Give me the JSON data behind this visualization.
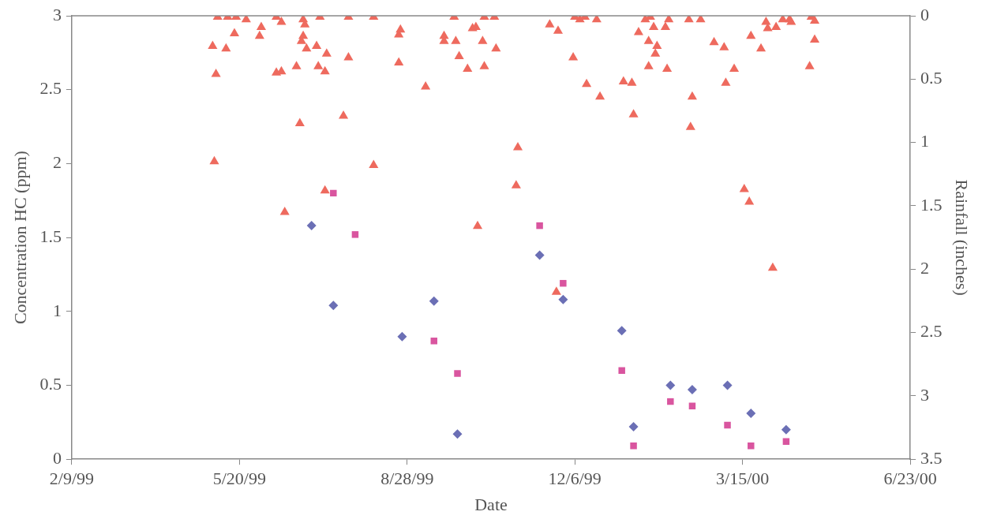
{
  "chart_data": {
    "type": "scatter",
    "xlabel": "Date",
    "ylabel": "Concentration HC (ppm)",
    "y2label": "Rainfall (inches)",
    "grid": false,
    "legend": false,
    "xlim": [
      "1999-02-09",
      "2000-06-23"
    ],
    "xticks": [
      {
        "value": "1999-02-09",
        "label": "2/9/99"
      },
      {
        "value": "1999-05-20",
        "label": "5/20/99"
      },
      {
        "value": "1999-08-28",
        "label": "8/28/99"
      },
      {
        "value": "1999-12-06",
        "label": "12/6/99"
      },
      {
        "value": "2000-03-15",
        "label": "3/15/00"
      },
      {
        "value": "2000-06-23",
        "label": "6/23/00"
      }
    ],
    "ylim": [
      0,
      3
    ],
    "yticks": [
      0,
      0.5,
      1,
      1.5,
      2,
      2.5,
      3
    ],
    "y2lim": [
      3.5,
      0
    ],
    "y2ticks": [
      0,
      0.5,
      1,
      1.5,
      2,
      2.5,
      3,
      3.5
    ],
    "series": [
      {
        "color": "#6b6fb5",
        "marker": "diamond",
        "x": [
          "1999-07-02",
          "1999-07-15",
          "1999-08-25",
          "1999-09-13",
          "1999-09-27",
          "1999-11-15",
          "1999-11-29",
          "2000-01-03",
          "2000-01-10",
          "2000-02-01",
          "2000-02-14",
          "2000-03-06",
          "2000-03-20",
          "2000-04-10"
        ],
        "values": [
          1.58,
          1.04,
          0.83,
          1.07,
          0.17,
          1.38,
          1.08,
          0.87,
          0.22,
          0.5,
          0.47,
          0.5,
          0.31,
          0.2
        ]
      },
      {
        "color": "#d9559f",
        "marker": "square",
        "x": [
          "1999-07-15",
          "1999-07-28",
          "1999-09-13",
          "1999-09-27",
          "1999-11-15",
          "1999-11-29",
          "2000-01-03",
          "2000-01-10",
          "2000-02-01",
          "2000-02-14",
          "2000-03-06",
          "2000-03-20",
          "2000-04-10"
        ],
        "values": [
          1.8,
          1.52,
          0.8,
          0.58,
          1.58,
          1.19,
          0.6,
          0.09,
          0.39,
          0.36,
          0.23,
          0.09,
          0.12
        ]
      },
      {
        "color": "#ee6a5e",
        "marker": "triangle",
        "axis": "y2",
        "x": [
          "1999-05-04",
          "1999-05-05",
          "1999-05-06",
          "1999-05-07",
          "1999-05-12",
          "1999-05-13",
          "1999-05-17",
          "1999-05-18",
          "1999-05-24",
          "1999-06-01",
          "1999-06-02",
          "1999-06-11",
          "1999-06-14",
          "1999-06-11",
          "1999-06-14",
          "1999-06-16",
          "1999-06-23",
          "1999-06-25",
          "1999-06-26",
          "1999-06-27",
          "1999-06-27",
          "1999-06-28",
          "1999-06-29",
          "1999-07-05",
          "1999-07-06",
          "1999-07-07",
          "1999-07-10",
          "1999-07-10",
          "1999-07-11",
          "1999-07-21",
          "1999-07-24",
          "1999-07-24",
          "1999-08-08",
          "1999-08-08",
          "1999-08-23",
          "1999-08-24",
          "1999-08-23",
          "1999-09-08",
          "1999-09-19",
          "1999-09-19",
          "1999-09-25",
          "1999-09-26",
          "1999-09-28",
          "1999-10-03",
          "1999-10-06",
          "1999-10-08",
          "1999-10-09",
          "1999-10-12",
          "1999-10-13",
          "1999-10-13",
          "1999-10-19",
          "1999-10-20",
          "1999-11-01",
          "1999-11-02",
          "1999-11-21",
          "1999-11-25",
          "1999-11-26",
          "1999-12-05",
          "1999-12-06",
          "1999-12-09",
          "1999-12-12",
          "1999-12-13",
          "1999-12-19",
          "1999-12-21",
          "2000-01-04",
          "2000-01-09",
          "2000-01-10",
          "2000-01-13",
          "2000-01-17",
          "2000-01-19",
          "2000-01-19",
          "2000-01-20",
          "2000-01-22",
          "2000-01-23",
          "2000-01-24",
          "2000-01-29",
          "2000-01-30",
          "2000-01-31",
          "2000-02-12",
          "2000-02-13",
          "2000-02-14",
          "2000-02-19",
          "2000-02-27",
          "2000-03-04",
          "2000-03-05",
          "2000-03-10",
          "2000-03-16",
          "2000-03-19",
          "2000-03-20",
          "2000-03-26",
          "2000-03-29",
          "2000-03-30",
          "2000-04-02",
          "2000-04-04",
          "2000-04-08",
          "2000-04-12",
          "2000-04-13",
          "2000-04-24",
          "2000-04-25",
          "2000-04-27",
          "2000-04-27"
        ],
        "values": [
          0.24,
          1.15,
          0.46,
          0.01,
          0.26,
          0.01,
          0.14,
          0.01,
          0.03,
          0.16,
          0.09,
          0.01,
          0.05,
          0.45,
          0.44,
          1.55,
          0.4,
          0.85,
          0.2,
          0.03,
          0.16,
          0.07,
          0.26,
          0.24,
          0.4,
          0.01,
          1.38,
          0.44,
          0.3,
          0.79,
          0.33,
          0.01,
          1.18,
          0.01,
          0.15,
          0.11,
          0.37,
          0.56,
          0.16,
          0.2,
          0.01,
          0.2,
          0.32,
          0.42,
          0.1,
          0.09,
          1.66,
          0.2,
          0.4,
          0.01,
          0.01,
          0.26,
          1.34,
          1.04,
          0.07,
          2.18,
          0.12,
          0.33,
          0.01,
          0.03,
          0.01,
          0.54,
          0.03,
          0.64,
          0.52,
          0.53,
          0.78,
          0.13,
          0.03,
          0.2,
          0.4,
          0.01,
          0.09,
          0.3,
          0.24,
          0.09,
          0.42,
          0.03,
          0.03,
          0.88,
          0.64,
          0.03,
          0.21,
          0.25,
          0.53,
          0.42,
          1.37,
          1.47,
          0.16,
          0.26,
          0.05,
          0.1,
          1.99,
          0.09,
          0.03,
          0.03,
          0.05,
          0.4,
          0.01,
          0.19,
          0.04
        ]
      }
    ]
  }
}
